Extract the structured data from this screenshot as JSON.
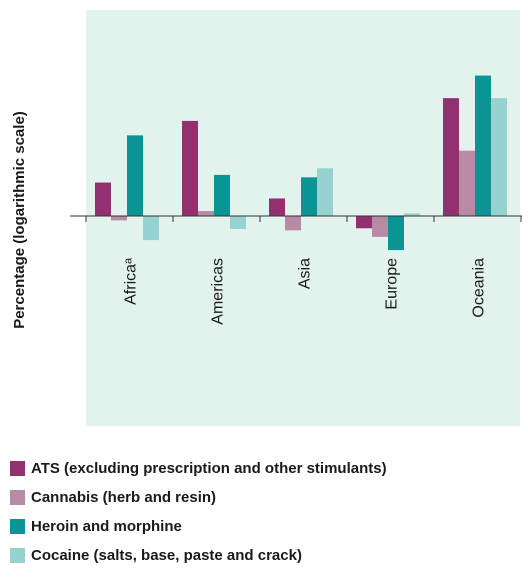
{
  "chart_data": {
    "type": "bar",
    "ylabel": "Percentage (logarithmic scale)",
    "y_scale": "log",
    "categories": [
      "Africaᵃ",
      "Americas",
      "Asia",
      "Europe",
      "Oceania"
    ],
    "series": [
      {
        "name": "ATS (excluding prescription and other stimulants)",
        "color": "#93306f",
        "values": [
          1.9,
          6.2,
          1.4,
          0.79,
          9.6
        ]
      },
      {
        "name": "Cannabis (herb and resin)",
        "color": "#b78aa6",
        "values": [
          0.92,
          1.1,
          0.76,
          0.67,
          3.5
        ]
      },
      {
        "name": "Heroin and morphine",
        "color": "#0a9493",
        "values": [
          4.7,
          2.2,
          2.1,
          0.52,
          14.8
        ]
      },
      {
        "name": "Cocaine (salts, base, paste and crack)",
        "color": "#96d2d0",
        "values": [
          0.63,
          0.78,
          2.5,
          1.05,
          9.6
        ]
      }
    ],
    "grid": false,
    "legend_position": "bottom"
  },
  "colors": {
    "plot_background": "#e2f2ec",
    "axis": "#333333"
  }
}
